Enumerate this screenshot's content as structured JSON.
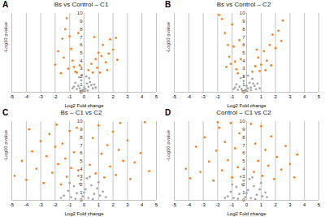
{
  "chart_data": [
    {
      "type": "scatter",
      "panel_label": "A",
      "title": "Bs vs Control – C1",
      "x_label": "Log2 Fold change",
      "y_label": "-Log10 pvalue",
      "xlim": [
        -5,
        5
      ],
      "xticks": [
        -5,
        -4,
        -3,
        -2,
        -1,
        0,
        1,
        2,
        3,
        4,
        5
      ],
      "ylim": [
        0,
        10
      ],
      "yticks": [
        0,
        1,
        2,
        3,
        4,
        5,
        6,
        7,
        8,
        9,
        10
      ],
      "grid": true,
      "series": [
        {
          "color": "#a6a6a6",
          "x": [
            -0.6,
            -0.4,
            -0.3,
            -0.2,
            -0.1,
            0,
            0.1,
            0.2,
            0.3,
            0.4,
            0.5,
            0.6,
            -0.5,
            -0.7,
            0.7,
            0.15,
            -0.15,
            0.35,
            -0.35,
            0.05,
            -0.05,
            0.25,
            -0.25,
            0.8,
            -0.8
          ],
          "values": [
            1.2,
            0.8,
            0.5,
            1.5,
            0.3,
            0.6,
            0.4,
            1.1,
            0.7,
            1.3,
            0.9,
            0.5,
            0.4,
            0.7,
            1.0,
            2.0,
            2.2,
            1.8,
            1.9,
            0.1,
            0.2,
            0.2,
            0.15,
            0.6,
            0.5
          ]
        },
        {
          "color": "#f5821f",
          "x": [
            -2.0,
            -1.8,
            -1.5,
            -1.3,
            -1.2,
            -1.0,
            -0.9,
            -0.8,
            -0.7,
            -0.6,
            -1.1,
            -1.6,
            -1.4,
            -0.5,
            -0.3,
            0.3,
            0.5,
            0.6,
            0.8,
            0.9,
            1.0,
            1.2,
            1.3,
            1.5,
            1.7,
            1.8,
            2.0,
            2.2,
            2.3,
            1.1,
            1.6,
            0.7,
            -0.4
          ],
          "values": [
            3.5,
            5.2,
            6.8,
            8.0,
            9.4,
            7.1,
            5.5,
            4.0,
            3.2,
            2.6,
            3.0,
            2.4,
            4.4,
            2.5,
            3.4,
            2.8,
            3.6,
            2.5,
            4.2,
            3.1,
            5.0,
            4.6,
            6.0,
            3.8,
            4.9,
            6.7,
            5.4,
            6.9,
            4.1,
            2.5,
            2.8,
            7.0,
            7.5
          ]
        }
      ]
    },
    {
      "type": "scatter",
      "panel_label": "B",
      "title": "Bs vs Control – C2",
      "x_label": "Log2 Fold change",
      "y_label": "-Log10 pvalue",
      "xlim": [
        -5,
        5
      ],
      "xticks": [
        -5,
        -4,
        -3,
        -2,
        -1,
        0,
        1,
        2,
        3,
        4,
        5
      ],
      "ylim": [
        0,
        10
      ],
      "yticks": [
        0,
        1,
        2,
        3,
        4,
        5,
        6,
        7,
        8,
        9,
        10
      ],
      "grid": true,
      "series": [
        {
          "color": "#a6a6a6",
          "x": [
            -0.7,
            -0.5,
            -0.35,
            -0.2,
            -0.1,
            0,
            0.1,
            0.2,
            0.3,
            0.45,
            0.55,
            0.65,
            -0.6,
            -0.8,
            0.75,
            0.1,
            -0.2,
            0.4,
            -0.4,
            0.05,
            -0.05,
            0.3,
            -0.3,
            0.9,
            -0.9
          ],
          "values": [
            1.0,
            0.7,
            0.4,
            1.4,
            0.3,
            0.8,
            0.5,
            1.2,
            0.6,
            1.1,
            0.8,
            0.4,
            0.3,
            0.6,
            1.1,
            2.1,
            2.0,
            1.7,
            1.8,
            0.1,
            0.2,
            0.25,
            0.2,
            0.5,
            0.4
          ]
        },
        {
          "color": "#f5821f",
          "x": [
            -1.9,
            -1.7,
            -1.5,
            -1.3,
            -1.2,
            -1.0,
            -0.9,
            -0.8,
            -0.7,
            -0.6,
            -1.4,
            -1.1,
            -0.4,
            0.4,
            0.6,
            0.8,
            0.9,
            1.0,
            1.2,
            1.4,
            1.6,
            1.8,
            2.0,
            2.2,
            2.4,
            2.5,
            1.3,
            1.7,
            0.7,
            -0.5
          ],
          "values": [
            9.8,
            9.3,
            7.5,
            6.0,
            4.5,
            8.6,
            5.8,
            3.9,
            2.9,
            2.4,
            3.2,
            3.6,
            4.2,
            2.6,
            3.3,
            4.4,
            2.7,
            3.5,
            5.2,
            4.0,
            6.0,
            7.3,
            5.6,
            7.8,
            6.5,
            9.1,
            2.8,
            3.4,
            5.4,
            6.6
          ]
        }
      ]
    },
    {
      "type": "scatter",
      "panel_label": "C",
      "title": "Bs – C1 vs C2",
      "x_label": "Log2 Fold change",
      "y_label": "-Log10 pvalue",
      "xlim": [
        -5,
        5
      ],
      "xticks": [
        -5,
        -4,
        -3,
        -2,
        -1,
        0,
        1,
        2,
        3,
        4,
        5
      ],
      "ylim": [
        0,
        10
      ],
      "yticks": [
        0,
        1,
        2,
        3,
        4,
        5,
        6,
        7,
        8,
        9,
        10
      ],
      "grid": true,
      "series": [
        {
          "color": "#a6a6a6",
          "x": [
            -1.4,
            -1.1,
            -0.9,
            -0.7,
            -0.5,
            -0.3,
            -0.1,
            0.1,
            0.3,
            0.5,
            0.7,
            0.9,
            1.1,
            1.3,
            1.5,
            -1.6,
            -0.2,
            0.2,
            0.0,
            -0.6,
            0.6,
            1.0,
            -1.0,
            0.4,
            -0.4
          ],
          "values": [
            0.6,
            1.2,
            0.4,
            1.8,
            0.9,
            2.1,
            0.5,
            1.4,
            0.3,
            1.9,
            0.8,
            1.5,
            0.6,
            1.1,
            0.4,
            0.3,
            2.6,
            2.8,
            1.0,
            0.2,
            0.15,
            2.3,
            2.2,
            3.0,
            3.1
          ]
        },
        {
          "color": "#f5821f",
          "x": [
            -4.8,
            -4.3,
            -4.0,
            -3.6,
            -3.3,
            -3.0,
            -2.8,
            -2.6,
            -2.4,
            -2.2,
            -2.0,
            -1.9,
            -1.8,
            -1.6,
            -1.5,
            -1.3,
            -1.2,
            -1.0,
            -0.9,
            -0.7,
            -0.5,
            -0.4,
            0.4,
            0.6,
            0.8,
            1.0,
            1.2,
            1.4,
            1.6,
            1.8,
            2.0,
            2.2,
            2.4,
            2.7,
            3.0,
            3.2,
            3.5,
            3.9,
            4.2,
            4.5,
            2.5,
            -3.8
          ],
          "values": [
            3.1,
            5.0,
            2.6,
            6.2,
            4.0,
            7.5,
            2.2,
            5.6,
            8.4,
            3.5,
            6.8,
            9.6,
            4.6,
            2.0,
            7.2,
            5.3,
            3.0,
            8.8,
            4.1,
            6.1,
            9.2,
            3.8,
            4.5,
            7.9,
            3.4,
            9.5,
            5.9,
            2.9,
            7.0,
            4.3,
            8.7,
            3.2,
            6.4,
            5.0,
            7.6,
            2.7,
            4.8,
            6.0,
            9.9,
            3.7,
            9.8,
            9.0
          ]
        }
      ]
    },
    {
      "type": "scatter",
      "panel_label": "D",
      "title": "Control – C1 vs C2",
      "x_label": "Log2 Fold change",
      "y_label": "-Log10 pvalue",
      "xlim": [
        -5,
        5
      ],
      "xticks": [
        -5,
        -4,
        -3,
        -2,
        -1,
        0,
        1,
        2,
        3,
        4,
        5
      ],
      "ylim": [
        0,
        10
      ],
      "yticks": [
        0,
        1,
        2,
        3,
        4,
        5,
        6,
        7,
        8,
        9,
        10
      ],
      "grid": true,
      "series": [
        {
          "color": "#a6a6a6",
          "x": [
            -1.3,
            -1.1,
            -0.9,
            -0.7,
            -0.5,
            -0.3,
            -0.1,
            0.1,
            0.3,
            0.5,
            0.7,
            0.9,
            1.1,
            1.3,
            -1.5,
            -0.2,
            0.2,
            0.0,
            -0.6,
            0.6,
            1.0,
            -1.0,
            0.4,
            -0.4,
            1.4
          ],
          "values": [
            0.5,
            1.1,
            0.3,
            1.7,
            0.8,
            2.0,
            0.4,
            1.3,
            0.3,
            1.8,
            0.7,
            1.4,
            0.5,
            1.0,
            0.3,
            2.5,
            2.7,
            0.9,
            0.2,
            0.15,
            2.2,
            2.0,
            2.9,
            3.0,
            0.4
          ]
        },
        {
          "color": "#f5821f",
          "x": [
            -4.2,
            -3.9,
            -3.5,
            -3.2,
            -2.9,
            -2.6,
            -2.3,
            -2.1,
            -1.9,
            -1.7,
            -1.5,
            -1.3,
            -1.1,
            -1.0,
            -0.8,
            -0.6,
            -0.5,
            0.5,
            0.6,
            0.8,
            1.0,
            1.1,
            1.3,
            1.5,
            1.7,
            1.9,
            2.1,
            2.4,
            2.7,
            3.0,
            3.3,
            3.5,
            -2.0,
            0.3
          ],
          "values": [
            4.0,
            2.8,
            6.8,
            3.6,
            8.0,
            4.9,
            2.5,
            6.3,
            9.2,
            3.8,
            7.4,
            5.1,
            9.8,
            2.9,
            6.6,
            4.2,
            8.5,
            3.6,
            7.2,
            5.0,
            9.4,
            3.1,
            6.4,
            4.4,
            8.1,
            2.7,
            5.5,
            3.9,
            6.9,
            4.6,
            2.9,
            5.8,
            9.9,
            9.7
          ]
        }
      ]
    }
  ]
}
